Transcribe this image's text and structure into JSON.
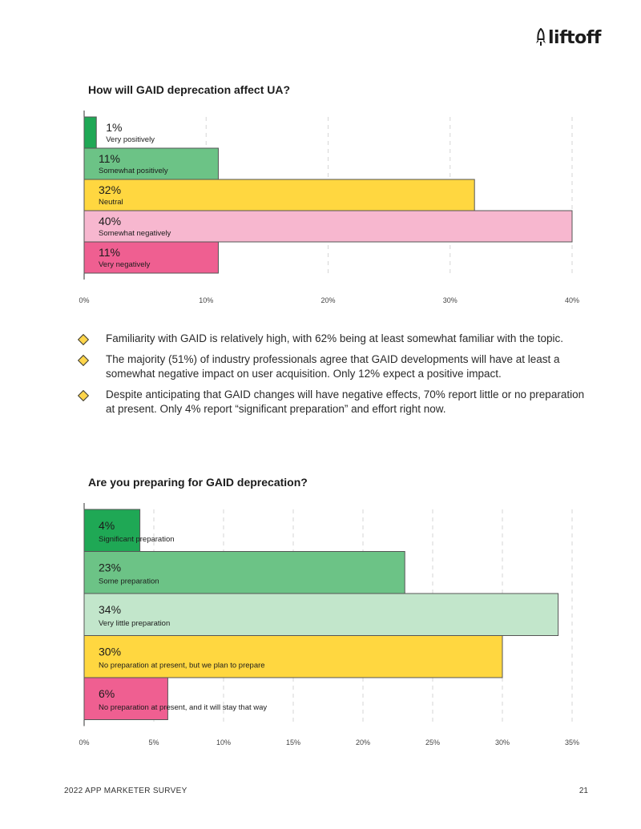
{
  "brand": {
    "name": "liftoff"
  },
  "chart_data": [
    {
      "type": "bar",
      "orientation": "horizontal",
      "title": "How will GAID deprecation affect UA?",
      "categories": [
        "Very positively",
        "Somewhat positively",
        "Neutral",
        "Somewhat negatively",
        "Very negatively"
      ],
      "values": [
        1,
        11,
        32,
        40,
        11
      ],
      "value_labels": [
        "1%",
        "11%",
        "32%",
        "40%",
        "11%"
      ],
      "colors": [
        "#1fa855",
        "#6cc386",
        "#ffd740",
        "#f7b7cf",
        "#ef5f91"
      ],
      "xlim": [
        0,
        40
      ],
      "xticks": [
        "0%",
        "10%",
        "20%",
        "30%",
        "40%"
      ],
      "grid": true
    },
    {
      "type": "bar",
      "orientation": "horizontal",
      "title": "Are you preparing for GAID deprecation?",
      "categories": [
        "Significant preparation",
        "Some preparation",
        "Very little preparation",
        "No preparation at present, but we plan to prepare",
        "No preparation at present, and it will stay that way"
      ],
      "values": [
        4,
        23,
        34,
        30,
        6
      ],
      "value_labels": [
        "4%",
        "23%",
        "34%",
        "30%",
        "6%"
      ],
      "colors": [
        "#1fa855",
        "#6cc386",
        "#c2e6cb",
        "#ffd740",
        "#ef5f91"
      ],
      "xlim": [
        0,
        35
      ],
      "xticks": [
        "0%",
        "5%",
        "10%",
        "15%",
        "20%",
        "25%",
        "30%",
        "35%"
      ],
      "grid": true
    }
  ],
  "bullets": [
    "Familiarity with GAID is relatively high, with 62% being at least somewhat familiar with the topic.",
    "The majority (51%) of industry professionals agree that GAID developments will have at least a somewhat negative impact on user acquisition. Only 12% expect a positive impact.",
    "Despite anticipating that GAID changes will have negative effects, 70% report little or no preparation at present. Only 4% report “significant preparation” and effort right now."
  ],
  "footer": {
    "left": "2022 APP MARKETER SURVEY",
    "page_number": "21"
  }
}
